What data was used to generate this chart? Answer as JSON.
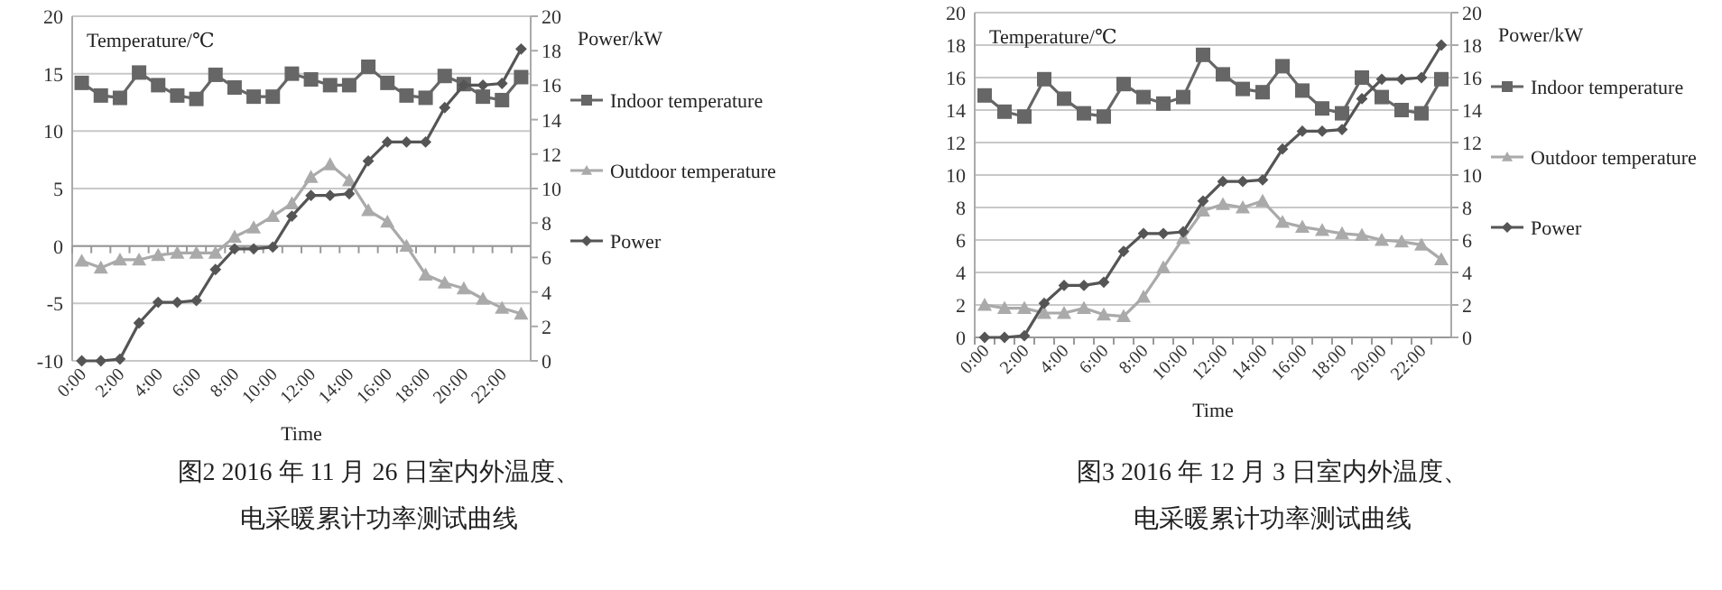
{
  "chart_data": [
    {
      "type": "line",
      "title": "图2 2016 年 11 月 26 日室内外温度、电采暖累计功率测试曲线",
      "xlabel": "Time",
      "ylabel": "Temperature/℃",
      "y2label": "Power/kW",
      "categories": [
        "0:00",
        null,
        "2:00",
        null,
        "4:00",
        null,
        "6:00",
        null,
        "8:00",
        null,
        "10:00",
        null,
        "12:00",
        null,
        "14:00",
        null,
        "16:00",
        null,
        "18:00",
        null,
        "20:00",
        null,
        "22:00",
        null
      ],
      "series": [
        {
          "name": "Indoor temperature",
          "color": "#666666",
          "marker": "square",
          "values": [
            14.2,
            13.1,
            12.9,
            15.1,
            14.0,
            13.1,
            12.8,
            14.9,
            13.8,
            13.0,
            13.0,
            15.0,
            14.5,
            14.0,
            14.0,
            15.6,
            14.2,
            13.1,
            12.9,
            14.8,
            14.1,
            13.0,
            12.7,
            14.7
          ]
        },
        {
          "name": "Outdoor temperature",
          "color": "#aaaaaa",
          "marker": "triangle",
          "values": [
            -1.3,
            -1.9,
            -1.2,
            -1.2,
            -0.8,
            -0.6,
            -0.6,
            -0.6,
            0.8,
            1.6,
            2.6,
            3.7,
            6.0,
            7.1,
            5.7,
            3.1,
            2.1,
            0.0,
            -2.5,
            -3.2,
            -3.7,
            -4.6,
            -5.4,
            -5.9
          ]
        },
        {
          "name": "Power",
          "color": "#555555",
          "marker": "diamond",
          "axis": "y2",
          "values": [
            0,
            0,
            0.1,
            2.2,
            3.4,
            3.4,
            3.5,
            5.3,
            6.5,
            6.5,
            6.6,
            8.4,
            9.6,
            9.6,
            9.7,
            11.6,
            12.7,
            12.7,
            12.7,
            14.7,
            16.0,
            16.0,
            16.1,
            18.1
          ]
        }
      ],
      "ylim": [
        -10,
        20
      ],
      "yticks": [
        -10,
        -5,
        0,
        5,
        10,
        15,
        20
      ],
      "y2lim": [
        0,
        20
      ],
      "y2ticks": [
        0,
        2,
        4,
        6,
        8,
        10,
        12,
        14,
        16,
        18,
        20
      ],
      "grid": "y",
      "legend": "right"
    },
    {
      "type": "line",
      "title": "图3 2016 年 12 月 3 日室内外温度、电采暖累计功率测试曲线",
      "xlabel": "Time",
      "ylabel": "Temperature/℃",
      "y2label": "Power/kW",
      "categories": [
        "0:00",
        null,
        "2:00",
        null,
        "4:00",
        null,
        "6:00",
        null,
        "8:00",
        null,
        "10:00",
        null,
        "12:00",
        null,
        "14:00",
        null,
        "16:00",
        null,
        "18:00",
        null,
        "20:00",
        null,
        "22:00",
        null
      ],
      "series": [
        {
          "name": "Indoor temperature",
          "color": "#666666",
          "marker": "square",
          "values": [
            14.9,
            13.9,
            13.6,
            15.9,
            14.7,
            13.8,
            13.6,
            15.6,
            14.8,
            14.4,
            14.8,
            17.4,
            16.2,
            15.3,
            15.1,
            16.7,
            15.2,
            14.1,
            13.8,
            16.0,
            14.8,
            14.0,
            13.8,
            15.9
          ]
        },
        {
          "name": "Outdoor temperature",
          "color": "#aaaaaa",
          "marker": "triangle",
          "values": [
            2.0,
            1.8,
            1.8,
            1.5,
            1.5,
            1.8,
            1.4,
            1.3,
            2.5,
            4.3,
            6.1,
            7.8,
            8.2,
            8.0,
            8.4,
            7.1,
            6.8,
            6.6,
            6.4,
            6.3,
            6.0,
            5.9,
            5.7,
            4.8
          ]
        },
        {
          "name": "Power",
          "color": "#555555",
          "marker": "diamond",
          "axis": "y2",
          "values": [
            0,
            0,
            0.1,
            2.1,
            3.2,
            3.2,
            3.4,
            5.3,
            6.4,
            6.4,
            6.5,
            8.4,
            9.6,
            9.6,
            9.7,
            11.6,
            12.7,
            12.7,
            12.8,
            14.7,
            15.9,
            15.9,
            16.0,
            18.0
          ]
        }
      ],
      "ylim": [
        0,
        20
      ],
      "yticks": [
        0,
        2,
        4,
        6,
        8,
        10,
        12,
        14,
        16,
        18,
        20
      ],
      "y2lim": [
        0,
        20
      ],
      "y2ticks": [
        0,
        2,
        4,
        6,
        8,
        10,
        12,
        14,
        16,
        18,
        20
      ],
      "grid": "y",
      "legend": "right"
    }
  ]
}
